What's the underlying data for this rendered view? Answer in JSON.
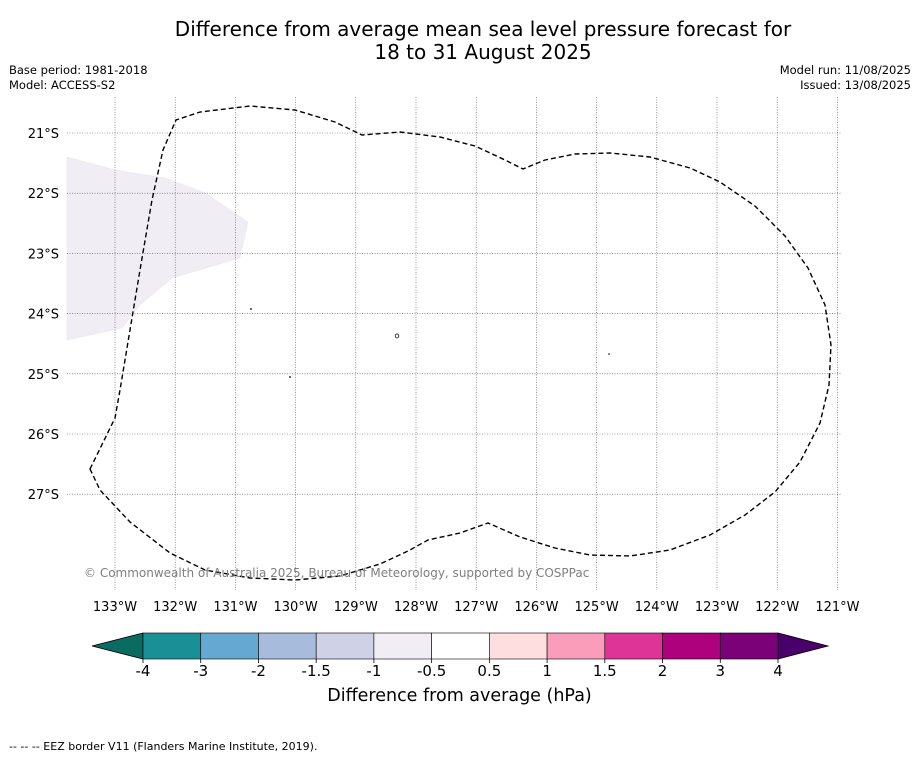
{
  "title_line1": "Difference from average mean sea level pressure forecast for",
  "title_line2": "18 to 31 August 2025",
  "base_period": "Base period: 1981-2018",
  "model": "Model: ACCESS-S2",
  "model_run": "Model run: 11/08/2025",
  "issued": "Issued: 13/08/2025",
  "copyright": "© Commonwealth of Australia 2025, Bureau of Meteorology, supported by COSPPac",
  "latitudes": [
    "21°S",
    "22°S",
    "23°S",
    "24°S",
    "25°S",
    "26°S",
    "27°S"
  ],
  "longitudes": [
    "133°W",
    "132°W",
    "131°W",
    "130°W",
    "129°W",
    "128°W",
    "127°W",
    "126°W",
    "125°W",
    "124°W",
    "123°W",
    "122°W",
    "121°W"
  ],
  "colorbar": {
    "ticks": [
      "-4",
      "-3",
      "-2",
      "-1.5",
      "-1",
      "-0.5",
      "0.5",
      "1",
      "1.5",
      "2",
      "3",
      "4"
    ],
    "colors": [
      "#1b8f96",
      "#65a8d2",
      "#a7bbdc",
      "#cfd1e6",
      "#f0edf4",
      "#ffffff",
      "#fedede",
      "#f99dba",
      "#de3497",
      "#ad017e",
      "#7a0177"
    ],
    "under_color": "#0a6b60",
    "over_color": "#4a006a",
    "label": "Difference from average (hPa)"
  },
  "anomaly_region_color": "#f0edf4",
  "footer": "-- -- -- EEZ border V11 (Flanders Marine Institute, 2019)."
}
